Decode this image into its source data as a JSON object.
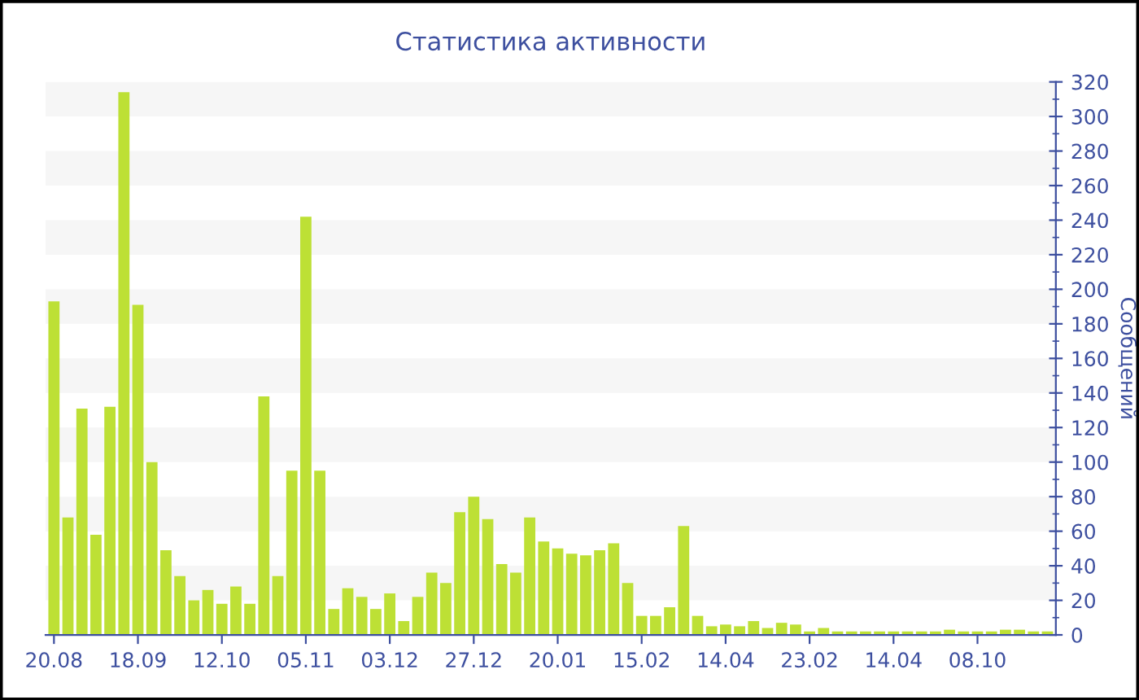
{
  "chart_data": {
    "type": "bar",
    "title": "Статистика активности",
    "ylabel": "Сообщений",
    "categories": [
      "20.08",
      null,
      null,
      null,
      null,
      null,
      "18.09",
      null,
      null,
      null,
      null,
      null,
      "12.10",
      null,
      null,
      null,
      null,
      null,
      "05.11",
      null,
      null,
      null,
      null,
      null,
      "03.12",
      null,
      null,
      null,
      null,
      null,
      "27.12",
      null,
      null,
      null,
      null,
      null,
      "20.01",
      null,
      null,
      null,
      null,
      null,
      "15.02",
      null,
      null,
      null,
      null,
      null,
      "14.04",
      null,
      null,
      null,
      null,
      null,
      "23.02",
      null,
      null,
      null,
      null,
      null,
      "14.04",
      null,
      null,
      null,
      null,
      null,
      "08.10",
      null,
      null,
      null,
      null,
      null
    ],
    "values": [
      193,
      68,
      131,
      58,
      132,
      314,
      191,
      100,
      49,
      34,
      20,
      26,
      18,
      28,
      18,
      138,
      34,
      95,
      242,
      95,
      15,
      27,
      22,
      15,
      24,
      8,
      22,
      36,
      30,
      71,
      80,
      67,
      41,
      36,
      68,
      54,
      50,
      47,
      46,
      49,
      53,
      30,
      11,
      11,
      16,
      63,
      11,
      5,
      6,
      5,
      8,
      4,
      7,
      6,
      2,
      4,
      2,
      2,
      2,
      2,
      2,
      2,
      2,
      2,
      3,
      2,
      2,
      2,
      3,
      3,
      2,
      2
    ],
    "color": "#bde035",
    "ylim": [
      0,
      320
    ],
    "yticks": [
      0,
      20,
      40,
      60,
      80,
      100,
      120,
      140,
      160,
      180,
      200,
      220,
      240,
      260,
      280,
      300,
      320
    ],
    "bands": [
      {
        "axis": "y",
        "from": 20,
        "to": 40,
        "color": "#f6f6f6"
      },
      {
        "axis": "y",
        "from": 60,
        "to": 80,
        "color": "#f6f6f6"
      },
      {
        "axis": "y",
        "from": 100,
        "to": 120,
        "color": "#f6f6f6"
      },
      {
        "axis": "y",
        "from": 140,
        "to": 160,
        "color": "#f6f6f6"
      },
      {
        "axis": "y",
        "from": 180,
        "to": 200,
        "color": "#f6f6f6"
      },
      {
        "axis": "y",
        "from": 220,
        "to": 240,
        "color": "#f6f6f6"
      },
      {
        "axis": "y",
        "from": 260,
        "to": 280,
        "color": "#f6f6f6"
      },
      {
        "axis": "y",
        "from": 300,
        "to": 320,
        "color": "#f6f6f6"
      }
    ]
  }
}
